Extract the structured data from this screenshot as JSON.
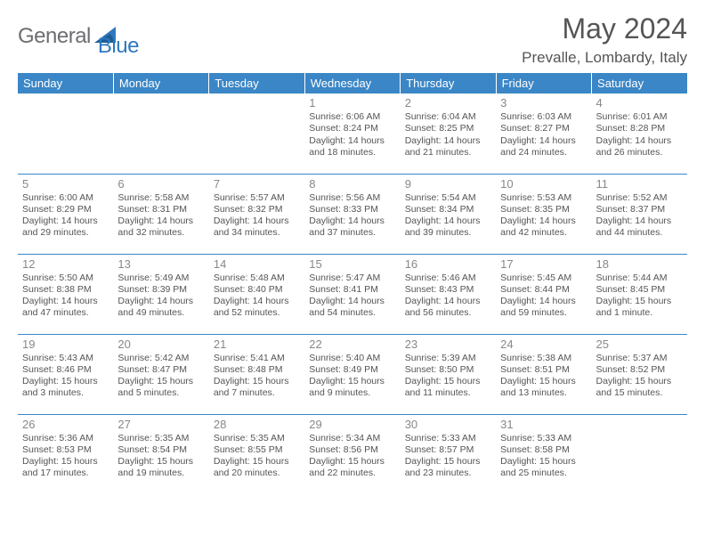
{
  "brand": {
    "text1": "General",
    "text2": "Blue"
  },
  "title": "May 2024",
  "location": "Prevalle, Lombardy, Italy",
  "colors": {
    "header_bg": "#3b86c6",
    "text": "#555555",
    "daynum": "#888888",
    "brand_gray": "#6d6e71",
    "brand_blue": "#2f78bf"
  },
  "weekdays": [
    "Sunday",
    "Monday",
    "Tuesday",
    "Wednesday",
    "Thursday",
    "Friday",
    "Saturday"
  ],
  "weeks": [
    [
      null,
      null,
      null,
      {
        "n": "1",
        "sr": "6:06 AM",
        "ss": "8:24 PM",
        "dl": "14 hours and 18 minutes."
      },
      {
        "n": "2",
        "sr": "6:04 AM",
        "ss": "8:25 PM",
        "dl": "14 hours and 21 minutes."
      },
      {
        "n": "3",
        "sr": "6:03 AM",
        "ss": "8:27 PM",
        "dl": "14 hours and 24 minutes."
      },
      {
        "n": "4",
        "sr": "6:01 AM",
        "ss": "8:28 PM",
        "dl": "14 hours and 26 minutes."
      }
    ],
    [
      {
        "n": "5",
        "sr": "6:00 AM",
        "ss": "8:29 PM",
        "dl": "14 hours and 29 minutes."
      },
      {
        "n": "6",
        "sr": "5:58 AM",
        "ss": "8:31 PM",
        "dl": "14 hours and 32 minutes."
      },
      {
        "n": "7",
        "sr": "5:57 AM",
        "ss": "8:32 PM",
        "dl": "14 hours and 34 minutes."
      },
      {
        "n": "8",
        "sr": "5:56 AM",
        "ss": "8:33 PM",
        "dl": "14 hours and 37 minutes."
      },
      {
        "n": "9",
        "sr": "5:54 AM",
        "ss": "8:34 PM",
        "dl": "14 hours and 39 minutes."
      },
      {
        "n": "10",
        "sr": "5:53 AM",
        "ss": "8:35 PM",
        "dl": "14 hours and 42 minutes."
      },
      {
        "n": "11",
        "sr": "5:52 AM",
        "ss": "8:37 PM",
        "dl": "14 hours and 44 minutes."
      }
    ],
    [
      {
        "n": "12",
        "sr": "5:50 AM",
        "ss": "8:38 PM",
        "dl": "14 hours and 47 minutes."
      },
      {
        "n": "13",
        "sr": "5:49 AM",
        "ss": "8:39 PM",
        "dl": "14 hours and 49 minutes."
      },
      {
        "n": "14",
        "sr": "5:48 AM",
        "ss": "8:40 PM",
        "dl": "14 hours and 52 minutes."
      },
      {
        "n": "15",
        "sr": "5:47 AM",
        "ss": "8:41 PM",
        "dl": "14 hours and 54 minutes."
      },
      {
        "n": "16",
        "sr": "5:46 AM",
        "ss": "8:43 PM",
        "dl": "14 hours and 56 minutes."
      },
      {
        "n": "17",
        "sr": "5:45 AM",
        "ss": "8:44 PM",
        "dl": "14 hours and 59 minutes."
      },
      {
        "n": "18",
        "sr": "5:44 AM",
        "ss": "8:45 PM",
        "dl": "15 hours and 1 minute."
      }
    ],
    [
      {
        "n": "19",
        "sr": "5:43 AM",
        "ss": "8:46 PM",
        "dl": "15 hours and 3 minutes."
      },
      {
        "n": "20",
        "sr": "5:42 AM",
        "ss": "8:47 PM",
        "dl": "15 hours and 5 minutes."
      },
      {
        "n": "21",
        "sr": "5:41 AM",
        "ss": "8:48 PM",
        "dl": "15 hours and 7 minutes."
      },
      {
        "n": "22",
        "sr": "5:40 AM",
        "ss": "8:49 PM",
        "dl": "15 hours and 9 minutes."
      },
      {
        "n": "23",
        "sr": "5:39 AM",
        "ss": "8:50 PM",
        "dl": "15 hours and 11 minutes."
      },
      {
        "n": "24",
        "sr": "5:38 AM",
        "ss": "8:51 PM",
        "dl": "15 hours and 13 minutes."
      },
      {
        "n": "25",
        "sr": "5:37 AM",
        "ss": "8:52 PM",
        "dl": "15 hours and 15 minutes."
      }
    ],
    [
      {
        "n": "26",
        "sr": "5:36 AM",
        "ss": "8:53 PM",
        "dl": "15 hours and 17 minutes."
      },
      {
        "n": "27",
        "sr": "5:35 AM",
        "ss": "8:54 PM",
        "dl": "15 hours and 19 minutes."
      },
      {
        "n": "28",
        "sr": "5:35 AM",
        "ss": "8:55 PM",
        "dl": "15 hours and 20 minutes."
      },
      {
        "n": "29",
        "sr": "5:34 AM",
        "ss": "8:56 PM",
        "dl": "15 hours and 22 minutes."
      },
      {
        "n": "30",
        "sr": "5:33 AM",
        "ss": "8:57 PM",
        "dl": "15 hours and 23 minutes."
      },
      {
        "n": "31",
        "sr": "5:33 AM",
        "ss": "8:58 PM",
        "dl": "15 hours and 25 minutes."
      },
      null
    ]
  ]
}
